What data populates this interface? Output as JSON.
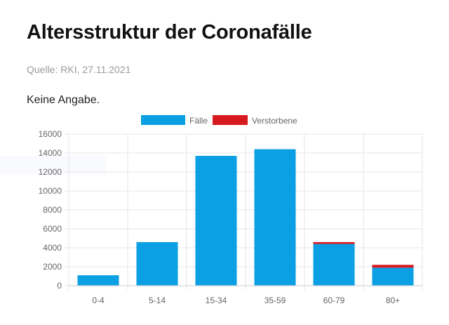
{
  "header": {
    "title": "Altersstruktur der Coronafälle",
    "source": "Quelle: RKI, 27.11.2021",
    "note": "Keine Angabe."
  },
  "colors": {
    "faelle": "#0aa0e3",
    "verstorbene": "#d71920",
    "grid": "#e6e6e6",
    "tick_text": "#666666"
  },
  "chart_data": {
    "type": "bar",
    "stacked": true,
    "title": "",
    "xlabel": "",
    "ylabel": "",
    "categories": [
      "0-4",
      "5-14",
      "15-34",
      "35-59",
      "60-79",
      "80+"
    ],
    "series": [
      {
        "name": "Fälle",
        "color": "#0aa0e3",
        "values": [
          1100,
          4600,
          13700,
          14400,
          4400,
          1900
        ]
      },
      {
        "name": "Verstorbene",
        "color": "#d71920",
        "values": [
          0,
          0,
          0,
          0,
          200,
          300
        ]
      }
    ],
    "ylim": [
      0,
      16000
    ],
    "yticks": [
      0,
      2000,
      4000,
      6000,
      8000,
      10000,
      12000,
      14000,
      16000
    ],
    "grid": true,
    "legend_position": "top-center"
  }
}
